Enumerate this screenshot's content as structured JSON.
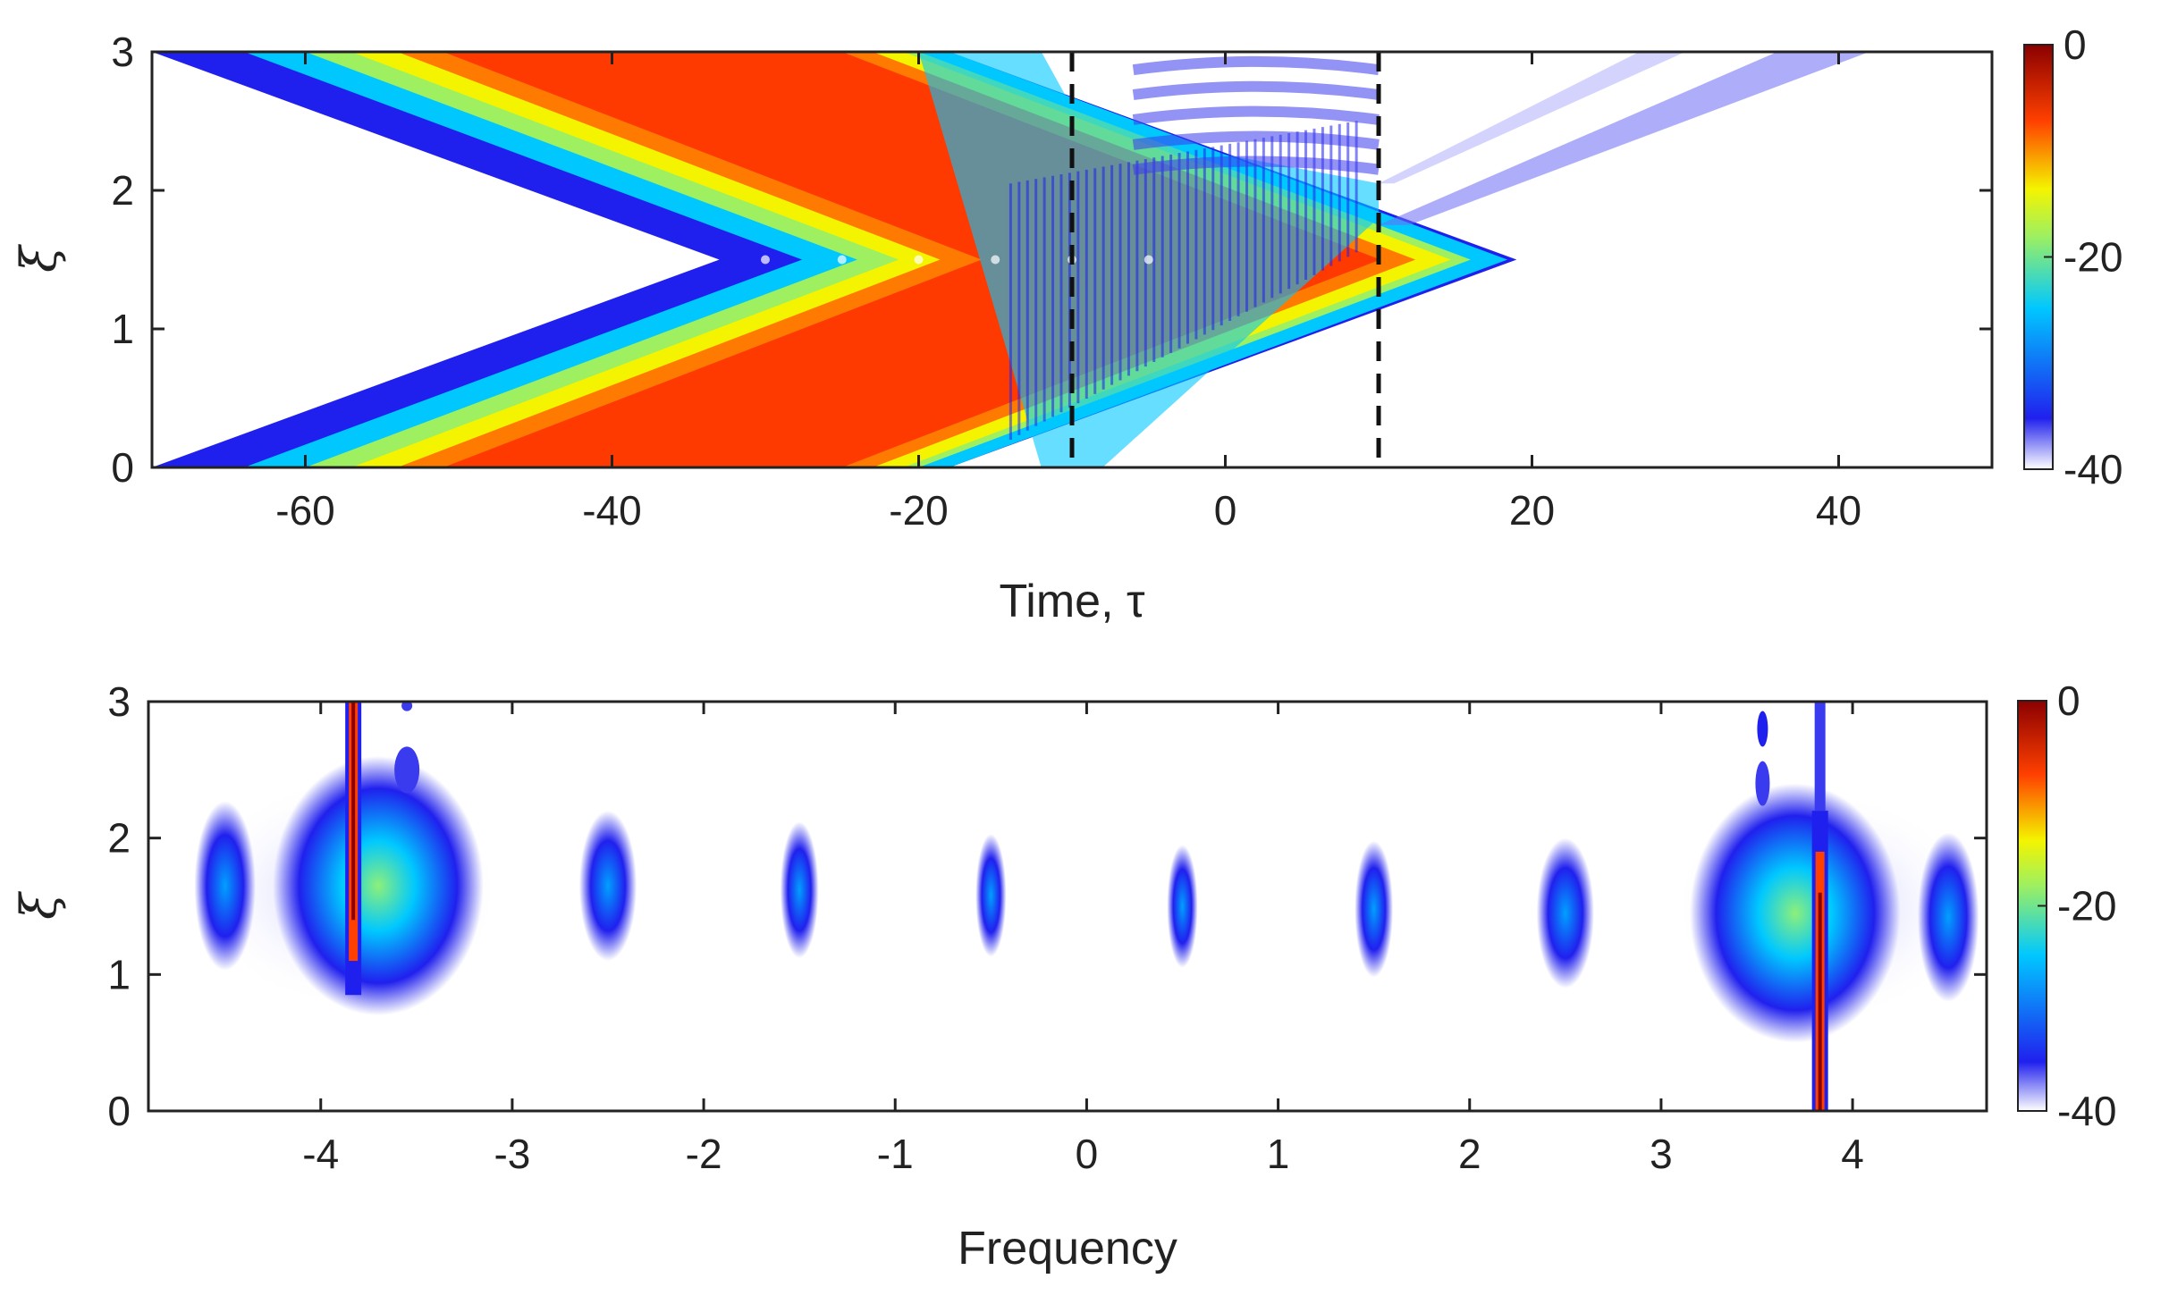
{
  "chart_data": [
    {
      "type": "heatmap",
      "xlabel": "Time, τ",
      "ylabel": "ξ",
      "xlim": [
        -70,
        50
      ],
      "ylim": [
        0,
        3
      ],
      "xticks": [
        -60,
        -40,
        -20,
        0,
        20,
        40
      ],
      "yticks": [
        0,
        1,
        2,
        3
      ],
      "colorbar": {
        "min": -40,
        "max": 0,
        "ticks": [
          0,
          -20,
          -40
        ]
      },
      "colormap": [
        "#ffffff",
        "#2020ee",
        "#00c8ff",
        "#f4f400",
        "#ff4000",
        "#8a0000"
      ],
      "dashed_lines_x": [
        -10,
        10
      ],
      "grid": false
    },
    {
      "type": "heatmap",
      "xlabel": "Frequency",
      "ylabel": "ξ",
      "xlim": [
        -4.9,
        4.7
      ],
      "ylim": [
        0,
        3
      ],
      "xticks": [
        -4,
        -3,
        -2,
        -1,
        0,
        1,
        2,
        3,
        4
      ],
      "yticks": [
        0,
        1,
        2,
        3
      ],
      "colorbar": {
        "min": -40,
        "max": 0,
        "ticks": [
          0,
          -20,
          -40
        ]
      },
      "colormap": [
        "#ffffff",
        "#2020ee",
        "#00c8ff",
        "#f4f400",
        "#ff4000",
        "#8a0000"
      ],
      "spectral_lines_x": [
        -3.83,
        3.83
      ],
      "sidebands_x": [
        -4.5,
        -2.5,
        -1.5,
        -0.5,
        0.5,
        1.5,
        2.5,
        4.5
      ],
      "grid": false
    }
  ]
}
